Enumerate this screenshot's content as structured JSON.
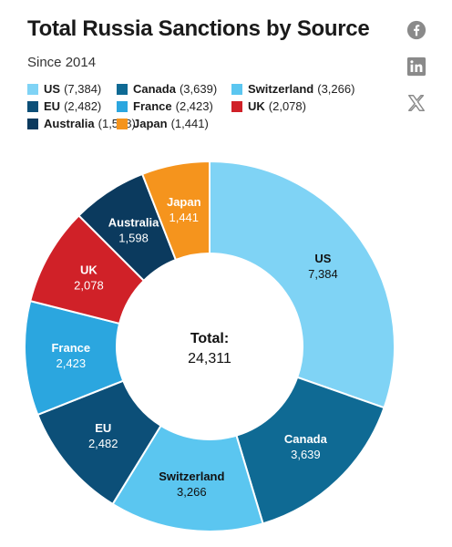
{
  "header": {
    "title": "Total Russia Sanctions by Source",
    "subtitle": "Since 2014"
  },
  "share": {
    "icons": [
      "facebook-icon",
      "linkedin-icon",
      "x-icon"
    ]
  },
  "chart_data": {
    "type": "donut",
    "title": "Total Russia Sanctions by Source",
    "subtitle": "Since 2014",
    "center_label": "Total:",
    "center_value": "24,311",
    "total": 24311,
    "slices": [
      {
        "label": "US",
        "value": 7384,
        "display": "7,384",
        "color": "#7fd3f5"
      },
      {
        "label": "Canada",
        "value": 3639,
        "display": "3,639",
        "color": "#0f6a94"
      },
      {
        "label": "Switzerland",
        "value": 3266,
        "display": "3,266",
        "color": "#5bc6f0"
      },
      {
        "label": "EU",
        "value": 2482,
        "display": "2,482",
        "color": "#0c4f78"
      },
      {
        "label": "France",
        "value": 2423,
        "display": "2,423",
        "color": "#2ba6df"
      },
      {
        "label": "UK",
        "value": 2078,
        "display": "2,078",
        "color": "#d02128"
      },
      {
        "label": "Australia",
        "value": 1598,
        "display": "1,598",
        "color": "#0b3a5e"
      },
      {
        "label": "Japan",
        "value": 1441,
        "display": "1,441",
        "color": "#f5941d"
      }
    ],
    "legend": "top-left"
  }
}
